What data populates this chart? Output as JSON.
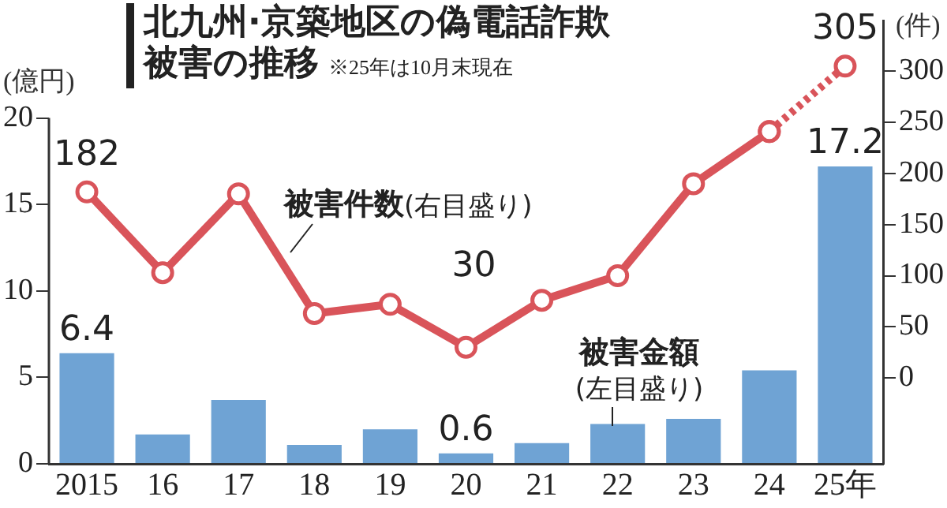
{
  "chart_data": {
    "type": "bar",
    "title": "北九州·京築地区の偽電話詐欺被害の推移",
    "subtitle": "※25年は10月末現在",
    "ylabel": "(億円)",
    "y2label": "(件)",
    "categories": [
      "2015",
      "16",
      "17",
      "18",
      "19",
      "20",
      "21",
      "22",
      "23",
      "24",
      "25年"
    ],
    "series": [
      {
        "name": "被害金額(左目盛り)",
        "color": "#6fa3d4",
        "values": [
          6.4,
          1.7,
          3.7,
          1.1,
          2.0,
          0.6,
          1.2,
          2.3,
          2.6,
          5.4,
          17.2
        ],
        "value_labels": [
          "6.4",
          null,
          null,
          null,
          null,
          "0.6",
          null,
          null,
          null,
          null,
          "17.2"
        ]
      },
      {
        "name": "被害件数(右目盛り)",
        "type": "line",
        "axis": "y2",
        "color": "#d9545a",
        "line_style": "solid",
        "values": [
          182,
          103,
          180,
          63,
          72,
          30,
          76,
          100,
          190,
          241,
          null
        ],
        "value_labels": [
          "182",
          null,
          null,
          null,
          null,
          "30",
          null,
          null,
          null,
          null,
          null
        ]
      },
      {
        "type": "line",
        "axis": "y2",
        "color": "#d9545a",
        "line_style": "dotted",
        "values": [
          null,
          null,
          null,
          null,
          null,
          null,
          null,
          null,
          null,
          241,
          305
        ],
        "value_labels": [
          null,
          null,
          null,
          null,
          null,
          null,
          null,
          null,
          null,
          null,
          "305"
        ]
      }
    ],
    "ylim": [
      0,
      25.6
    ],
    "yticks": [
      0,
      5,
      10,
      15,
      20
    ],
    "y2lim": [
      -84,
      349
    ],
    "y2ticks": [
      0,
      50,
      100,
      150,
      200,
      250,
      300
    ],
    "marker": "circle",
    "grid": false,
    "legend": false
  }
}
